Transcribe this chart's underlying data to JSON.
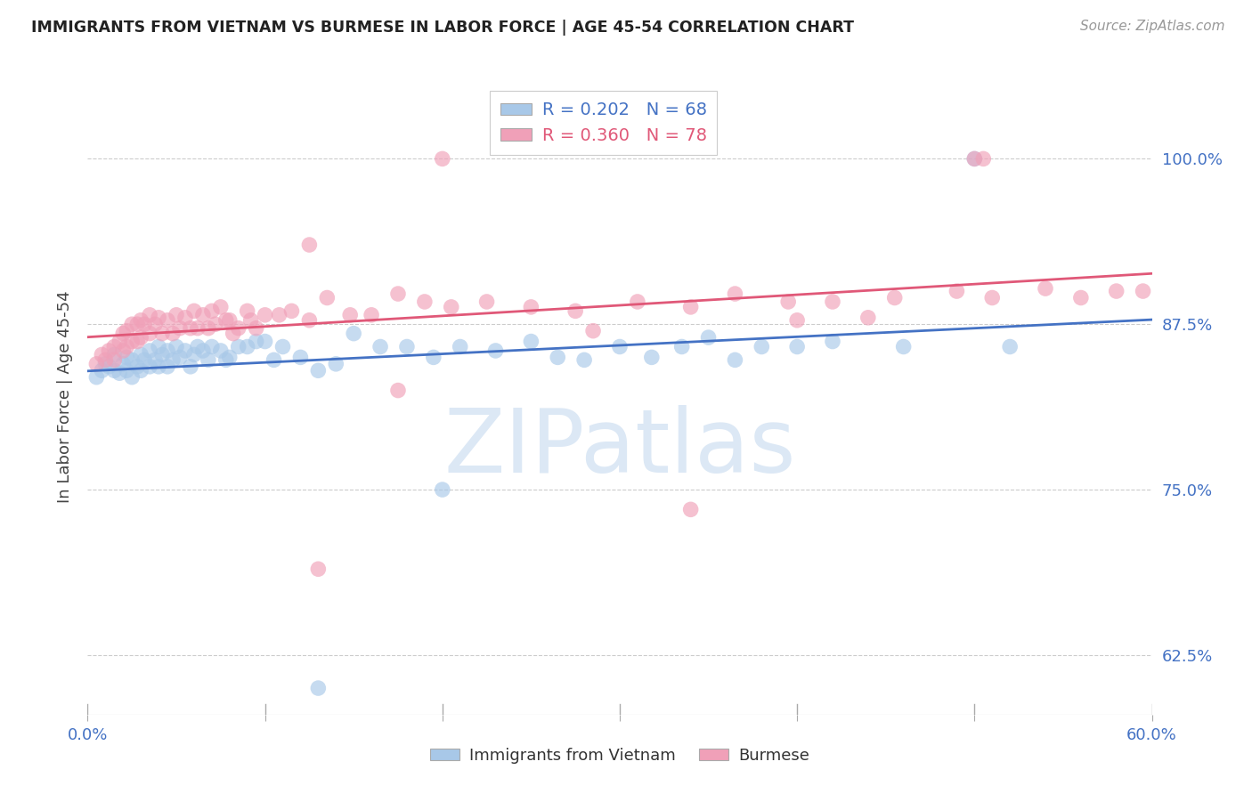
{
  "title": "IMMIGRANTS FROM VIETNAM VS BURMESE IN LABOR FORCE | AGE 45-54 CORRELATION CHART",
  "source_text": "Source: ZipAtlas.com",
  "ylabel": "In Labor Force | Age 45-54",
  "xlim": [
    0.0,
    0.6
  ],
  "ylim": [
    0.58,
    1.06
  ],
  "xticks": [
    0.0,
    0.1,
    0.2,
    0.3,
    0.4,
    0.5,
    0.6
  ],
  "xticklabels": [
    "0.0%",
    "",
    "",
    "",
    "",
    "",
    "60.0%"
  ],
  "yticks": [
    0.625,
    0.75,
    0.875,
    1.0
  ],
  "yticklabels": [
    "62.5%",
    "75.0%",
    "87.5%",
    "100.0%"
  ],
  "vietnam_color": "#a8c8e8",
  "burmese_color": "#f0a0b8",
  "vietnam_line_color": "#4472c4",
  "burmese_line_color": "#e05878",
  "vietnam_R": 0.202,
  "vietnam_N": 68,
  "burmese_R": 0.36,
  "burmese_N": 78,
  "grid_color": "#cccccc",
  "title_color": "#222222",
  "tick_label_color": "#4472c4",
  "watermark_text": "ZIPatlas",
  "watermark_color": "#dce8f5",
  "vietnam_x": [
    0.005,
    0.008,
    0.01,
    0.012,
    0.015,
    0.015,
    0.018,
    0.02,
    0.022,
    0.022,
    0.025,
    0.025,
    0.028,
    0.03,
    0.03,
    0.032,
    0.035,
    0.035,
    0.038,
    0.04,
    0.04,
    0.042,
    0.045,
    0.045,
    0.048,
    0.05,
    0.052,
    0.055,
    0.058,
    0.06,
    0.062,
    0.065,
    0.068,
    0.07,
    0.075,
    0.078,
    0.08,
    0.085,
    0.09,
    0.095,
    0.1,
    0.105,
    0.11,
    0.12,
    0.13,
    0.14,
    0.15,
    0.165,
    0.18,
    0.195,
    0.21,
    0.23,
    0.25,
    0.265,
    0.28,
    0.3,
    0.318,
    0.335,
    0.35,
    0.365,
    0.38,
    0.4,
    0.42,
    0.46,
    0.5,
    0.52,
    0.2,
    0.13
  ],
  "vietnam_y": [
    0.835,
    0.84,
    0.845,
    0.843,
    0.84,
    0.852,
    0.838,
    0.845,
    0.85,
    0.84,
    0.848,
    0.835,
    0.843,
    0.852,
    0.84,
    0.848,
    0.855,
    0.843,
    0.848,
    0.858,
    0.843,
    0.852,
    0.855,
    0.843,
    0.848,
    0.858,
    0.85,
    0.855,
    0.843,
    0.852,
    0.858,
    0.855,
    0.848,
    0.858,
    0.855,
    0.848,
    0.85,
    0.858,
    0.858,
    0.862,
    0.862,
    0.848,
    0.858,
    0.85,
    0.84,
    0.845,
    0.868,
    0.858,
    0.858,
    0.85,
    0.858,
    0.855,
    0.862,
    0.85,
    0.848,
    0.858,
    0.85,
    0.858,
    0.865,
    0.848,
    0.858,
    0.858,
    0.862,
    0.858,
    1.0,
    0.858,
    0.75,
    0.6
  ],
  "burmese_x": [
    0.005,
    0.008,
    0.01,
    0.012,
    0.015,
    0.015,
    0.018,
    0.02,
    0.02,
    0.022,
    0.022,
    0.025,
    0.025,
    0.028,
    0.028,
    0.03,
    0.03,
    0.032,
    0.035,
    0.035,
    0.038,
    0.04,
    0.042,
    0.045,
    0.048,
    0.05,
    0.052,
    0.055,
    0.058,
    0.06,
    0.062,
    0.065,
    0.068,
    0.07,
    0.072,
    0.075,
    0.078,
    0.08,
    0.082,
    0.085,
    0.09,
    0.092,
    0.095,
    0.1,
    0.108,
    0.115,
    0.125,
    0.135,
    0.148,
    0.16,
    0.175,
    0.19,
    0.205,
    0.225,
    0.25,
    0.275,
    0.31,
    0.34,
    0.365,
    0.395,
    0.42,
    0.455,
    0.49,
    0.51,
    0.54,
    0.56,
    0.58,
    0.595,
    0.125,
    0.285,
    0.175,
    0.34,
    0.2,
    0.44,
    0.5,
    0.505,
    0.13,
    0.4
  ],
  "burmese_y": [
    0.845,
    0.852,
    0.848,
    0.855,
    0.858,
    0.848,
    0.862,
    0.868,
    0.855,
    0.87,
    0.858,
    0.875,
    0.862,
    0.875,
    0.862,
    0.878,
    0.865,
    0.875,
    0.882,
    0.868,
    0.875,
    0.88,
    0.868,
    0.878,
    0.868,
    0.882,
    0.872,
    0.88,
    0.872,
    0.885,
    0.872,
    0.882,
    0.872,
    0.885,
    0.875,
    0.888,
    0.878,
    0.878,
    0.868,
    0.872,
    0.885,
    0.878,
    0.872,
    0.882,
    0.882,
    0.885,
    0.878,
    0.895,
    0.882,
    0.882,
    0.898,
    0.892,
    0.888,
    0.892,
    0.888,
    0.885,
    0.892,
    0.888,
    0.898,
    0.892,
    0.892,
    0.895,
    0.9,
    0.895,
    0.902,
    0.895,
    0.9,
    0.9,
    0.935,
    0.87,
    0.825,
    0.735,
    1.0,
    0.88,
    1.0,
    1.0,
    0.69,
    0.878
  ]
}
